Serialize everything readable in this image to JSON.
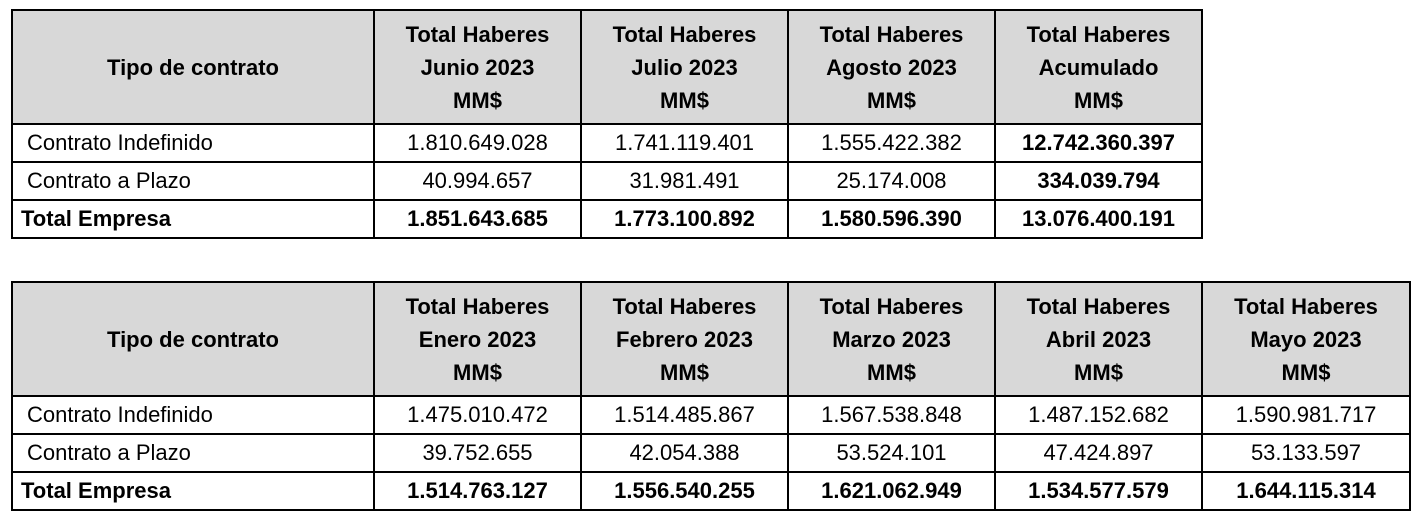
{
  "table1": {
    "headers": [
      {
        "lines": [
          "Tipo de contrato"
        ]
      },
      {
        "lines": [
          "Total Haberes",
          "Junio 2023",
          "MM$"
        ]
      },
      {
        "lines": [
          "Total Haberes",
          "Julio 2023",
          "MM$"
        ]
      },
      {
        "lines": [
          "Total Haberes",
          "Agosto 2023",
          "MM$"
        ]
      },
      {
        "lines": [
          "Total Haberes",
          "Acumulado",
          "MM$"
        ]
      }
    ],
    "rows": [
      {
        "label": "Contrato Indefinido",
        "values": [
          "1.810.649.028",
          "1.741.119.401",
          "1.555.422.382",
          "12.742.360.397"
        ]
      },
      {
        "label": "Contrato a Plazo",
        "values": [
          "40.994.657",
          "31.981.491",
          "25.174.008",
          "334.039.794"
        ]
      },
      {
        "label": "Total Empresa",
        "values": [
          "1.851.643.685",
          "1.773.100.892",
          "1.580.596.390",
          "13.076.400.191"
        ]
      }
    ]
  },
  "table2": {
    "headers": [
      {
        "lines": [
          "Tipo de contrato"
        ]
      },
      {
        "lines": [
          "Total Haberes",
          "Enero 2023",
          "MM$"
        ]
      },
      {
        "lines": [
          "Total Haberes",
          "Febrero 2023",
          "MM$"
        ]
      },
      {
        "lines": [
          "Total Haberes",
          "Marzo 2023",
          "MM$"
        ]
      },
      {
        "lines": [
          "Total Haberes",
          "Abril 2023",
          "MM$"
        ]
      },
      {
        "lines": [
          "Total Haberes",
          "Mayo 2023",
          "MM$"
        ]
      }
    ],
    "rows": [
      {
        "label": "Contrato Indefinido",
        "values": [
          "1.475.010.472",
          "1.514.485.867",
          "1.567.538.848",
          "1.487.152.682",
          "1.590.981.717"
        ]
      },
      {
        "label": "Contrato a Plazo",
        "values": [
          "39.752.655",
          "42.054.388",
          "53.524.101",
          "47.424.897",
          "53.133.597"
        ]
      },
      {
        "label": "Total Empresa",
        "values": [
          "1.514.763.127",
          "1.556.540.255",
          "1.621.062.949",
          "1.534.577.579",
          "1.644.115.314"
        ]
      }
    ]
  },
  "colors": {
    "header_background": "#d8d8d8",
    "border": "#000000",
    "text": "#000000"
  }
}
